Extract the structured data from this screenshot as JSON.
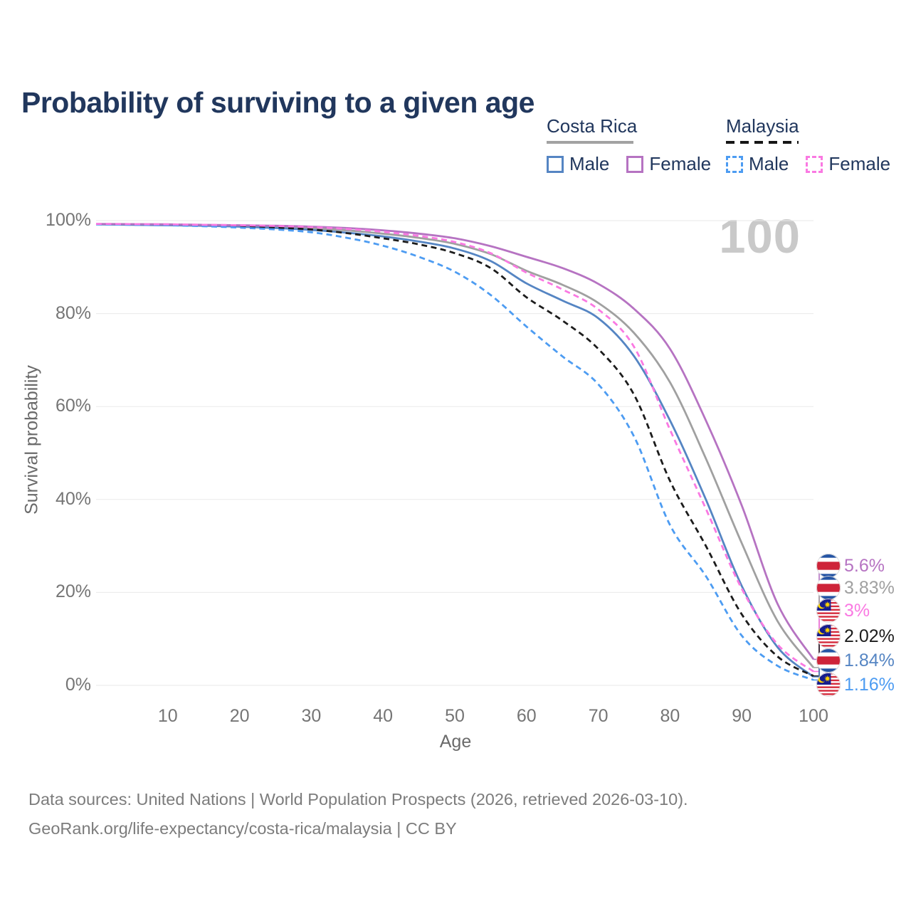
{
  "title": "Probability of surviving to a given age",
  "watermark_age": "100",
  "legend": {
    "groups": [
      {
        "name": "Costa Rica",
        "underline_style": "solid",
        "underline_color": "#a2a2a2",
        "items": [
          {
            "label": "Male",
            "color": "#5585c3",
            "dash": false
          },
          {
            "label": "Female",
            "color": "#b673c2",
            "dash": false
          }
        ]
      },
      {
        "name": "Malaysia",
        "underline_style": "dashed",
        "underline_color": "#161616",
        "items": [
          {
            "label": "Male",
            "color": "#4d9cf2",
            "dash": true
          },
          {
            "label": "Female",
            "color": "#fa79e2",
            "dash": true
          }
        ]
      }
    ]
  },
  "axes": {
    "y_label": "Survival probability",
    "x_label": "Age",
    "y_ticks": [
      "100%",
      "80%",
      "60%",
      "40%",
      "20%",
      "0%"
    ],
    "y_tick_values": [
      100,
      80,
      60,
      40,
      20,
      0
    ],
    "x_ticks": [
      "10",
      "20",
      "30",
      "40",
      "50",
      "60",
      "70",
      "80",
      "90",
      "100"
    ],
    "x_tick_values": [
      10,
      20,
      30,
      40,
      50,
      60,
      70,
      80,
      90,
      100
    ]
  },
  "chart_data": {
    "type": "line",
    "title": "Probability of surviving to a given age",
    "xlabel": "Age",
    "ylabel": "Survival probability",
    "xlim": [
      0,
      100
    ],
    "ylim": [
      0,
      100
    ],
    "grid": true,
    "legend_position": "top-right",
    "x": [
      0,
      5,
      10,
      15,
      20,
      25,
      30,
      35,
      40,
      45,
      50,
      55,
      60,
      65,
      70,
      75,
      80,
      85,
      90,
      95,
      100
    ],
    "series": [
      {
        "name": "Costa Rica All",
        "country": "Costa Rica",
        "sex": "All",
        "style": "solid",
        "color": "#a0a0a0",
        "flag": "costa-rica",
        "end_label": "3.83%",
        "values": [
          99.25,
          99.2,
          99.1,
          99.0,
          98.85,
          98.65,
          98.35,
          97.9,
          97.2,
          96.3,
          95.0,
          92.8,
          89.2,
          86.2,
          82.3,
          75.8,
          65.2,
          48.8,
          30.6,
          13.8,
          3.83
        ]
      },
      {
        "name": "Costa Rica Male",
        "country": "Costa Rica",
        "sex": "Male",
        "style": "solid",
        "color": "#5585c3",
        "flag": "costa-rica",
        "end_label": "1.84%",
        "values": [
          99.2,
          99.1,
          99.0,
          98.9,
          98.7,
          98.4,
          98.0,
          97.4,
          96.6,
          95.5,
          94.0,
          91.3,
          86.5,
          82.8,
          79.0,
          70.8,
          57.0,
          40.0,
          21.4,
          8.2,
          1.84
        ]
      },
      {
        "name": "Costa Rica Female",
        "country": "Costa Rica",
        "sex": "Female",
        "style": "solid",
        "color": "#b673c2",
        "flag": "costa-rica",
        "end_label": "5.6%",
        "values": [
          99.3,
          99.25,
          99.2,
          99.1,
          99.0,
          98.9,
          98.7,
          98.4,
          97.9,
          97.2,
          96.2,
          94.5,
          92.2,
          89.8,
          86.4,
          81.0,
          72.4,
          57.0,
          38.7,
          17.5,
          5.6
        ]
      },
      {
        "name": "Malaysia All",
        "country": "Malaysia",
        "sex": "All",
        "style": "dashed",
        "color": "#1c1c1c",
        "flag": "malaysia",
        "end_label": "2.02%",
        "values": [
          99.25,
          99.2,
          99.1,
          98.95,
          98.75,
          98.5,
          98.1,
          97.3,
          96.2,
          94.9,
          93.0,
          89.8,
          83.5,
          78.5,
          72.4,
          62.5,
          44.0,
          30.0,
          15.3,
          6.2,
          2.02
        ]
      },
      {
        "name": "Malaysia Male",
        "country": "Malaysia",
        "sex": "Male",
        "style": "dashed",
        "color": "#4d9cf2",
        "flag": "malaysia",
        "end_label": "1.16%",
        "values": [
          99.2,
          99.1,
          99.0,
          98.8,
          98.5,
          98.1,
          97.5,
          96.3,
          94.6,
          92.2,
          89.0,
          84.0,
          77.2,
          70.8,
          64.8,
          53.5,
          34.5,
          23.5,
          10.7,
          4.2,
          1.16
        ]
      },
      {
        "name": "Malaysia Female",
        "country": "Malaysia",
        "sex": "Female",
        "style": "dashed",
        "color": "#fa79e2",
        "flag": "malaysia",
        "end_label": "3%",
        "values": [
          99.3,
          99.25,
          99.2,
          99.1,
          99.0,
          98.85,
          98.6,
          98.2,
          97.6,
          96.7,
          95.4,
          93.0,
          88.8,
          85.2,
          80.9,
          72.8,
          55.0,
          38.0,
          20.8,
          8.8,
          3.0
        ]
      }
    ]
  },
  "footer": {
    "line1": "Data sources: United Nations | World Population Prospects (2026, retrieved 2026-03-10).",
    "line2": "GeoRank.org/life-expectancy/costa-rica/malaysia | CC BY"
  }
}
